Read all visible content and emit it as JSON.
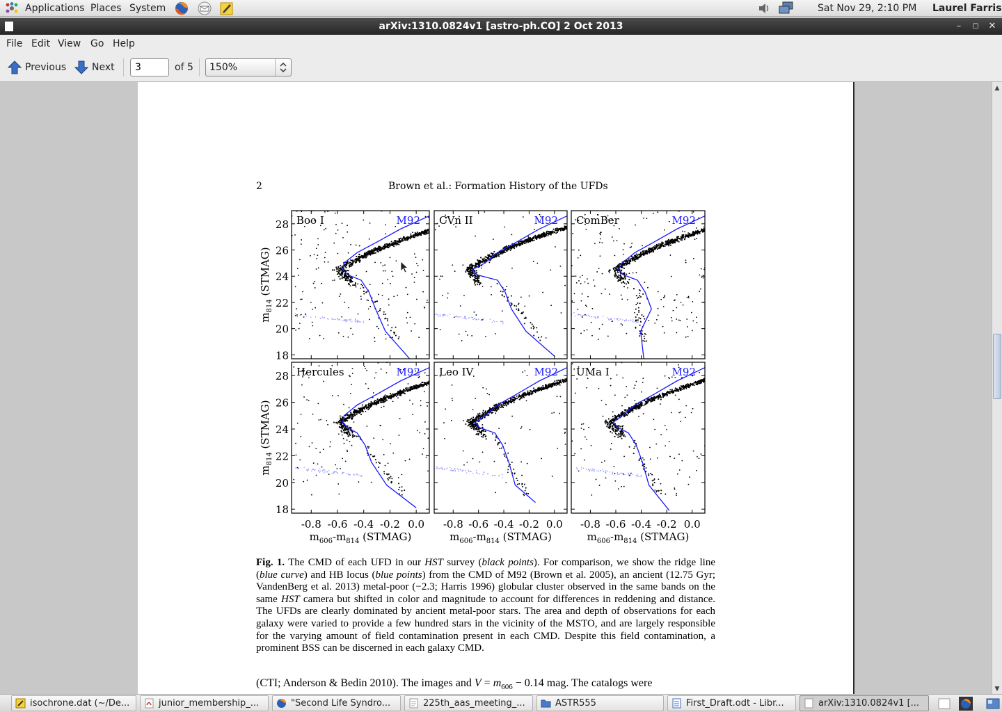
{
  "top_panel": {
    "menus": [
      "Applications",
      "Places",
      "System"
    ],
    "launchers": [
      "firefox-icon",
      "mail-icon",
      "notes-icon"
    ],
    "tray_icons": [
      "volume-icon",
      "network-icon"
    ],
    "clock": "Sat Nov 29,  2:10 PM",
    "user": "Laurel Farris"
  },
  "window": {
    "title": "arXiv:1310.0824v1  [astro-ph.CO]  2 Oct 2013"
  },
  "menubar": {
    "items": [
      "File",
      "Edit",
      "View",
      "Go",
      "Help"
    ]
  },
  "toolbar": {
    "previous_label": "Previous",
    "next_label": "Next",
    "page_value": "3",
    "page_total": "of 5",
    "zoom": "150%"
  },
  "document": {
    "page_number": "2",
    "running_head": "Brown et al.: Formation History of the UFDs",
    "figure": {
      "panels": [
        {
          "name": "Boo I",
          "ref": "M92"
        },
        {
          "name": "CVn II",
          "ref": "M92"
        },
        {
          "name": "ComBer",
          "ref": "M92"
        },
        {
          "name": "Hercules",
          "ref": "M92"
        },
        {
          "name": "Leo IV",
          "ref": "M92"
        },
        {
          "name": "UMa I",
          "ref": "M92"
        }
      ],
      "y_ticks": [
        "18",
        "20",
        "22",
        "24",
        "26",
        "28"
      ],
      "x_ticks": [
        "-0.8",
        "-0.6",
        "-0.4",
        "-0.2",
        "0.0"
      ],
      "ylabel_main": "m",
      "ylabel_sub": "814",
      "ylabel_tail": " (STMAG)",
      "xlabel_a": "m",
      "xlabel_sub_a": "606",
      "xlabel_mid": "-m",
      "xlabel_sub_b": "814",
      "xlabel_tail": " (STMAG)"
    },
    "caption": {
      "label": "Fig. 1.",
      "parts": [
        " The CMD of each UFD in our ",
        "HST",
        " survey (",
        "black points",
        "). For comparison, we show the ridge line (",
        "blue curve",
        ") and HB locus (",
        "blue points",
        ") from the CMD of M92 (Brown et al. 2005), an ancient (12.75 Gyr; VandenBerg et al. 2013) metal-poor (−2.3; Harris 1996) globular cluster observed in the same bands on the same ",
        "HST",
        " camera but shifted in color and magnitude to account for differences in reddening and distance. The UFDs are clearly dominated by ancient metal-poor stars. The area and depth of observations for each galaxy were varied to provide a few hundred stars in the vicinity of the MSTO, and are largely responsible for the varying amount of field contamination present in each CMD. Despite this field contamination, a prominent BSS can be discerned in each galaxy CMD."
      ]
    },
    "body_line": {
      "a": "(CTI; Anderson & Bedin 2010). The images   and ",
      "v": "V",
      "eq": " = ",
      "m": "m",
      "m_sub": "606",
      "rest": " − 0.14 mag. The catalogs were"
    }
  },
  "taskbar": {
    "tasks": [
      {
        "label": "isochrone.dat (~/De...",
        "icon": "text-editor-icon"
      },
      {
        "label": "junior_membership_...",
        "icon": "pdf-icon"
      },
      {
        "label": "\"Second Life Syndro...",
        "icon": "firefox-icon"
      },
      {
        "label": "225th_aas_meeting_...",
        "icon": "document-icon"
      },
      {
        "label": "ASTR555",
        "icon": "folder-icon"
      },
      {
        "label": "First_Draft.odt - Libr...",
        "icon": "writer-icon"
      },
      {
        "label": "arXiv:1310.0824v1  [...",
        "icon": "document-icon"
      }
    ]
  },
  "colors": {
    "accent_blue": "#1a1aff",
    "panel_bg": "#ececec",
    "titlebar": "#2f2f2f"
  }
}
